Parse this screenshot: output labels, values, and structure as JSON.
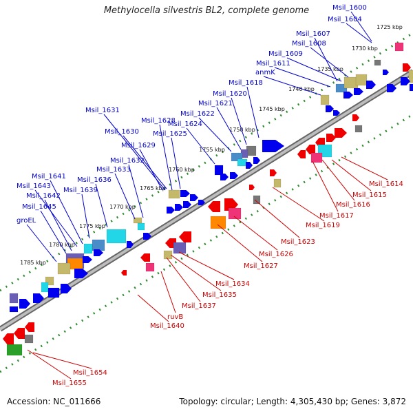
{
  "title": "Methylocella silvestris BL2, complete genome",
  "footer": {
    "accession": "Accession: NC_011666",
    "topology": "Topology: circular; Length: 4,305,430 bp; Genes: 3,872"
  },
  "ticks": [
    "1725 kbp",
    "1730 kbp",
    "1735 kbp",
    "1740 kbp",
    "1745 kbp",
    "1750 kbp",
    "1755 kbp",
    "1760 kbp",
    "1765 kbp",
    "1770 kbp",
    "1775 kbp",
    "1780 kbp",
    "1785 kbp"
  ],
  "upper_labels": [
    "Msil_1600",
    "Msil_1604",
    "Msil_1607",
    "Msil_1608",
    "Msil_1609",
    "Msil_1611",
    "anmK",
    "Msil_1618",
    "Msil_1620",
    "Msil_1621",
    "Msil_1622",
    "Msil_1624",
    "Msil_1625",
    "Msil_1628",
    "Msil_1630",
    "Msil_1631",
    "Msil_1629",
    "Msil_1632",
    "Msil_1633",
    "Msil_1636",
    "Msil_1639",
    "Msil_1641",
    "Msil_1643",
    "Msil_1642",
    "Msil_1645",
    "groEL"
  ],
  "lower_labels": [
    "Msil_1614",
    "Msil_1615",
    "Msil_1616",
    "Msil_1617",
    "Msil_1619",
    "Msil_1623",
    "Msil_1626",
    "Msil_1627",
    "Msil_1634",
    "Msil_1635",
    "Msil_1637",
    "ruvB",
    "Msil_1640",
    "Msil_1654",
    "Msil_1655"
  ],
  "colors": {
    "blue": "#0000ee",
    "red": "#ee0000",
    "khaki": "#c4b86a",
    "cyan": "#22d6e8",
    "pink": "#ee3377",
    "orange": "#ff8800",
    "steel": "#4a8cc8",
    "purple": "#6b5fb5",
    "green": "#2aa02a",
    "grey": "#777777",
    "backbone": "#8a8a8a"
  }
}
